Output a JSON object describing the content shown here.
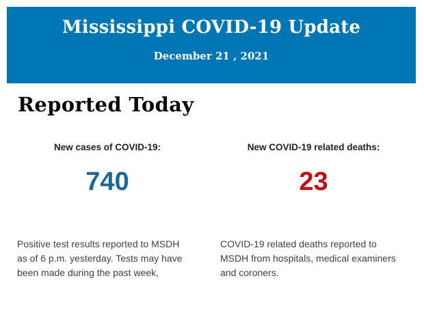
{
  "banner": {
    "title": "Mississippi COVID-19 Update",
    "date": "December 21 , 2021"
  },
  "section": {
    "heading": "Reported Today"
  },
  "stats": [
    {
      "id": "new-cases",
      "label": "New cases of COVID-19:",
      "value": "740",
      "description": "Positive test results reported to MSDH as of 6 p.m. yesterday. Tests may have been made during the past week,"
    },
    {
      "id": "new-deaths",
      "label": "New COVID-19 related deaths:",
      "value": "23",
      "description": "COVID-19 related deaths reported to MSDH from hospitals, medical examiners and coroners."
    }
  ],
  "colors": {
    "banner_bg": "#0077b4",
    "banner_text": "#ffffff",
    "heading_text": "#0b0b0b",
    "label_text": "#212121",
    "body_text": "#3f3f3f",
    "cases_number": "#1b6998",
    "deaths_number": "#c50d0f",
    "page_bg": "#ffffff"
  }
}
